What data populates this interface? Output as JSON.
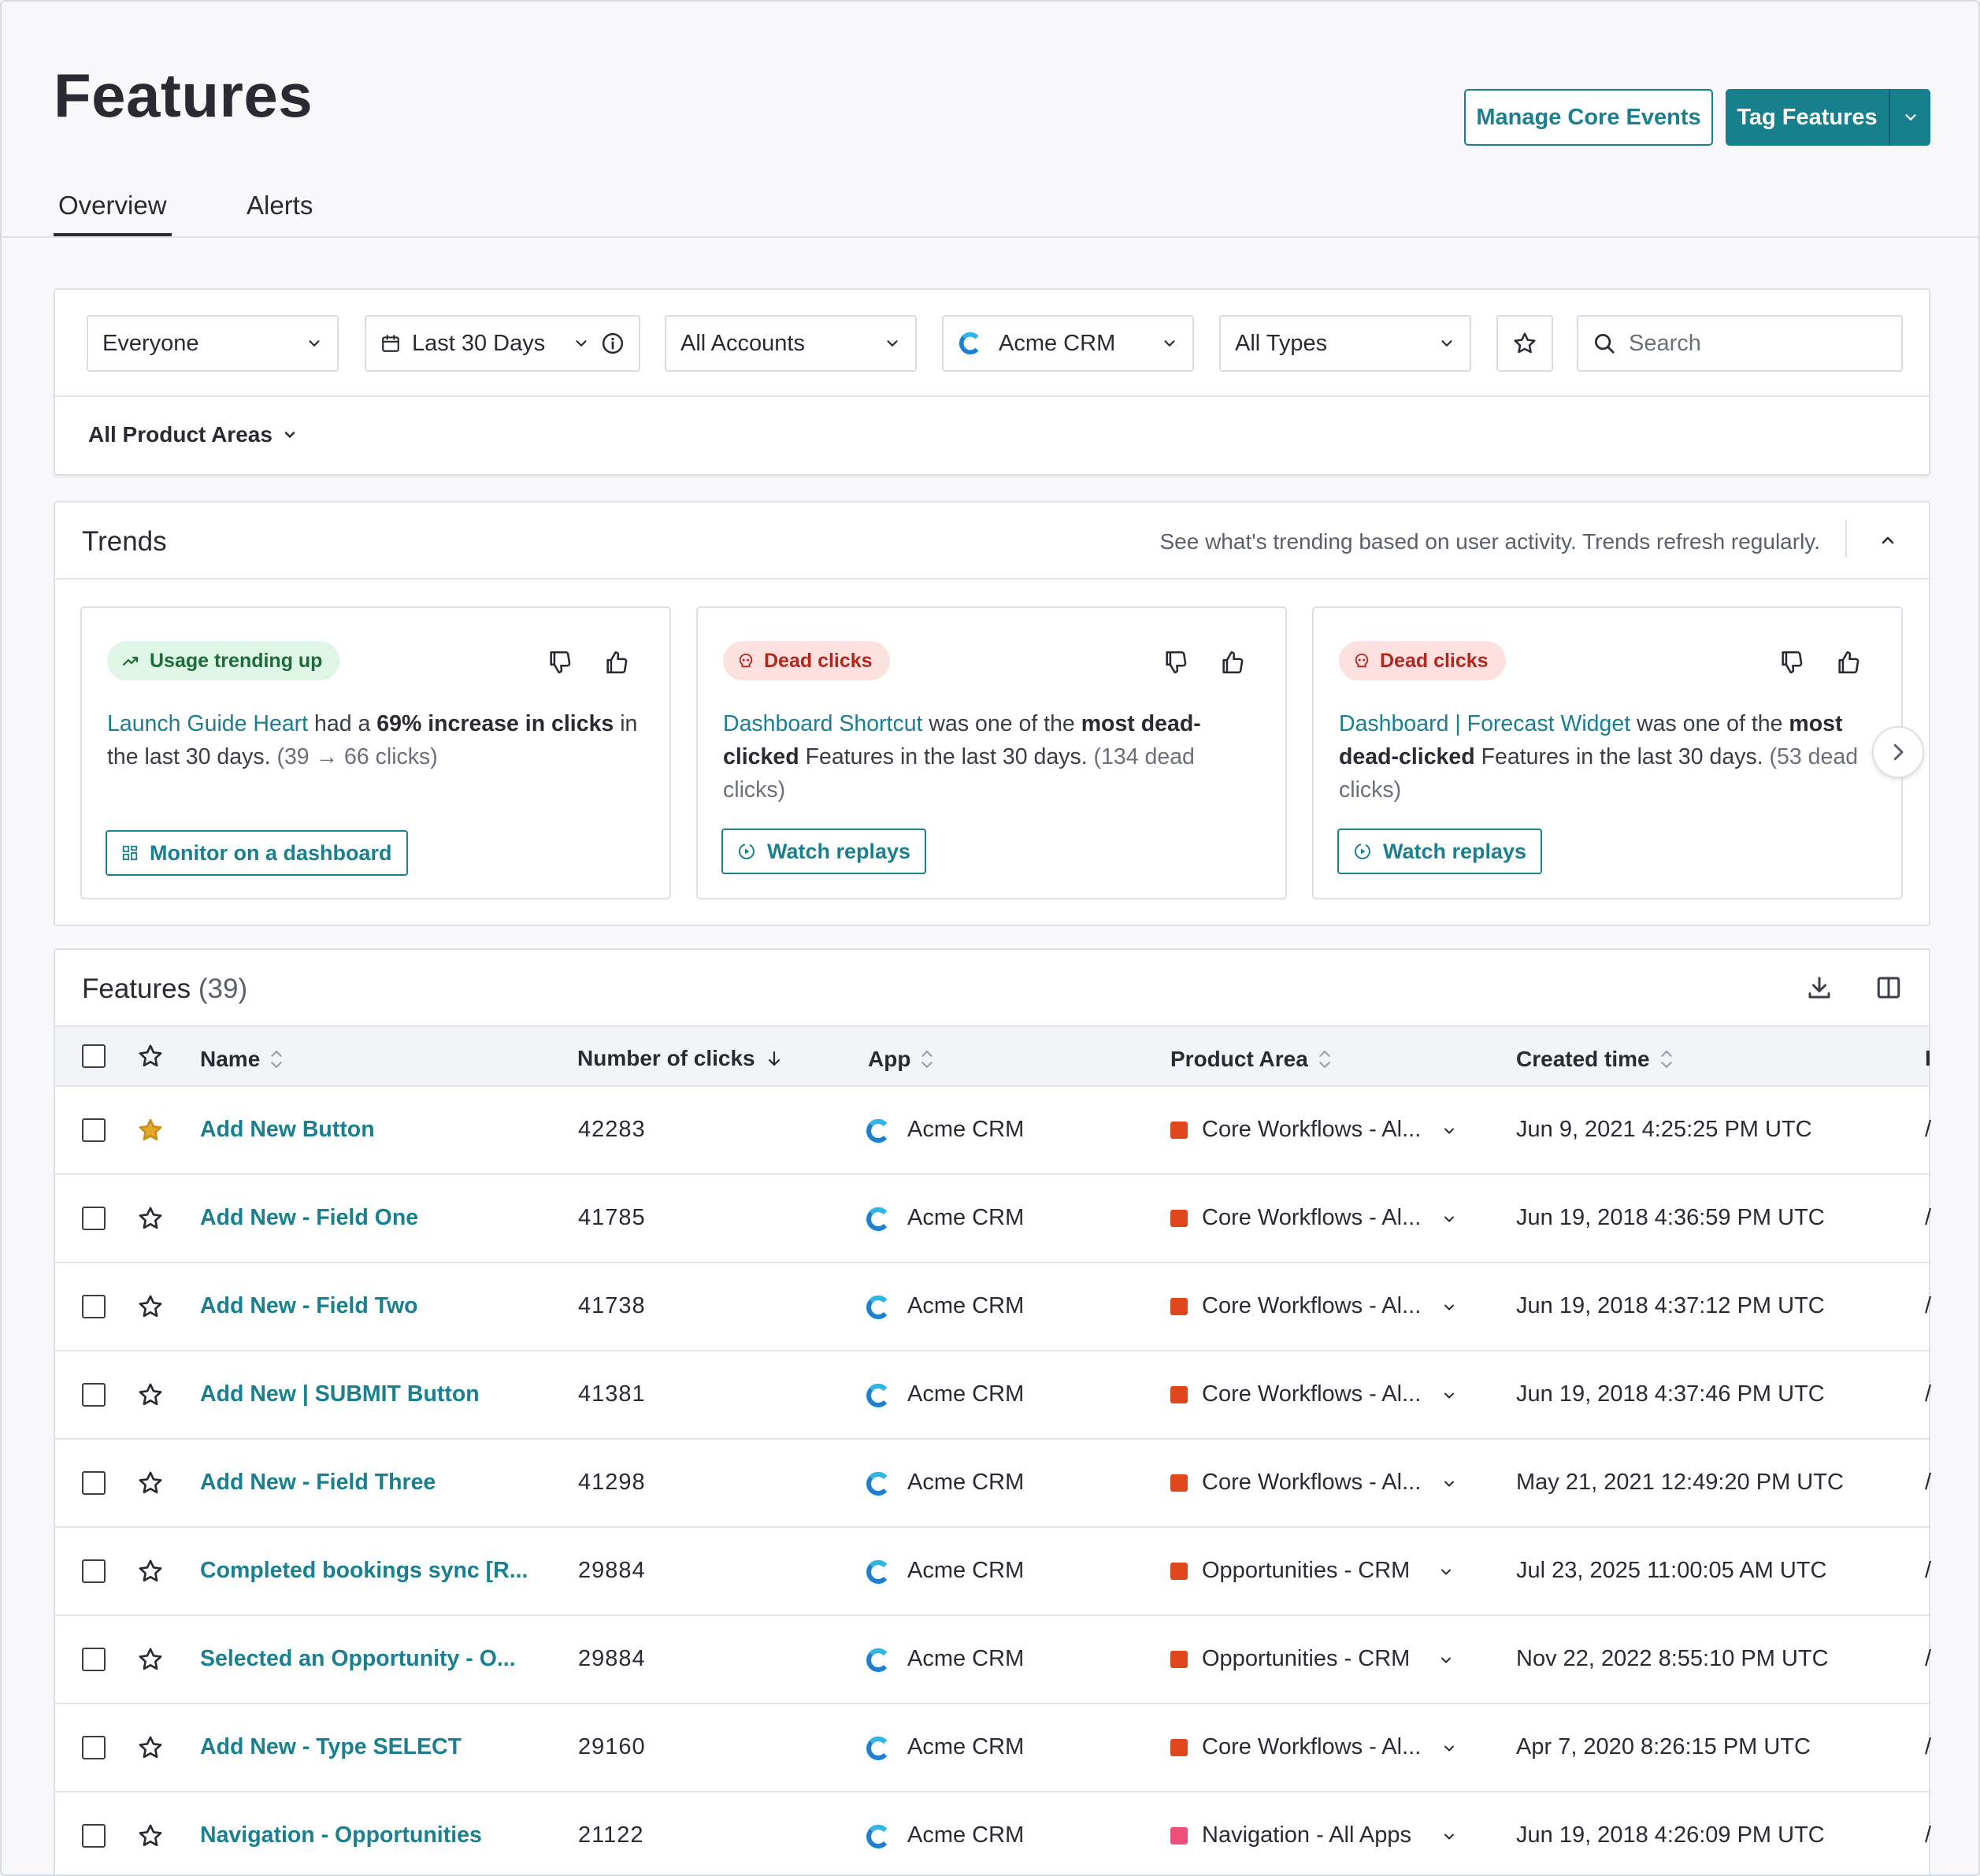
{
  "header": {
    "title": "Features",
    "manage_core_events": "Manage Core Events",
    "tag_features": "Tag Features"
  },
  "tabs": [
    {
      "label": "Overview",
      "active": true
    },
    {
      "label": "Alerts",
      "active": false
    }
  ],
  "filters": {
    "segment": "Everyone",
    "date_range": "Last 30 Days",
    "accounts": "All Accounts",
    "app": "Acme CRM",
    "types": "All Types",
    "search_placeholder": "Search",
    "product_areas": "All Product Areas"
  },
  "trends": {
    "title": "Trends",
    "hint": "See what's trending based on user activity. Trends refresh regularly.",
    "cards": [
      {
        "badge": "Usage trending up",
        "link": "Launch Guide Heart",
        "text_a": " had a ",
        "bold_a": "69% increase in clicks",
        "text_b": " in the last 30 days. ",
        "muted": "(39 → 66 clicks)",
        "button": "Monitor on a dashboard"
      },
      {
        "badge": "Dead clicks",
        "link": "Dashboard Shortcut",
        "text_a": " was one of the ",
        "bold_a": "most dead-clicked",
        "text_b": " Features in the last 30 days. ",
        "muted": "(134 dead clicks)",
        "button": "Watch replays"
      },
      {
        "badge": "Dead clicks",
        "link": "Dashboard | Forecast Widget",
        "text_a": " was one of the ",
        "bold_a": "most dead-clicked",
        "text_b": " Features in the last 30 days. ",
        "muted": "(53 dead clicks)",
        "button": "Watch replays"
      }
    ]
  },
  "features_table": {
    "title": "Features",
    "count": "(39)",
    "columns": {
      "name": "Name",
      "clicks": "Number of clicks",
      "app": "App",
      "product_area": "Product Area",
      "created": "Created time"
    },
    "rows": [
      {
        "name": "Add New Button",
        "clicks": "42283",
        "app": "Acme CRM",
        "area": "Core Workflows - Al...",
        "area_color": "#e0461b",
        "created": "Jun 9, 2021 4:25:25 PM UTC",
        "starred": true
      },
      {
        "name": "Add New - Field One",
        "clicks": "41785",
        "app": "Acme CRM",
        "area": "Core Workflows - Al...",
        "area_color": "#e0461b",
        "created": "Jun 19, 2018 4:36:59 PM UTC",
        "starred": false
      },
      {
        "name": "Add New - Field Two",
        "clicks": "41738",
        "app": "Acme CRM",
        "area": "Core Workflows - Al...",
        "area_color": "#e0461b",
        "created": "Jun 19, 2018 4:37:12 PM UTC",
        "starred": false
      },
      {
        "name": "Add New | SUBMIT Button",
        "clicks": "41381",
        "app": "Acme CRM",
        "area": "Core Workflows - Al...",
        "area_color": "#e0461b",
        "created": "Jun 19, 2018 4:37:46 PM UTC",
        "starred": false
      },
      {
        "name": "Add New - Field Three",
        "clicks": "41298",
        "app": "Acme CRM",
        "area": "Core Workflows - Al...",
        "area_color": "#e0461b",
        "created": "May 21, 2021 12:49:20 PM UTC",
        "starred": false
      },
      {
        "name": "Completed bookings sync [R...",
        "clicks": "29884",
        "app": "Acme CRM",
        "area": "Opportunities - CRM",
        "area_color": "#e0461b",
        "created": "Jul 23, 2025 11:00:05 AM UTC",
        "starred": false
      },
      {
        "name": "Selected an Opportunity - O...",
        "clicks": "29884",
        "app": "Acme CRM",
        "area": "Opportunities - CRM",
        "area_color": "#e0461b",
        "created": "Nov 22, 2022 8:55:10 PM UTC",
        "starred": false
      },
      {
        "name": "Add New - Type SELECT",
        "clicks": "29160",
        "app": "Acme CRM",
        "area": "Core Workflows - Al...",
        "area_color": "#e0461b",
        "created": "Apr 7, 2020 8:26:15 PM UTC",
        "starred": false
      },
      {
        "name": "Navigation - Opportunities",
        "clicks": "21122",
        "app": "Acme CRM",
        "area": "Navigation - All Apps",
        "area_color": "#f04e7a",
        "created": "Jun 19, 2018 4:26:09 PM UTC",
        "starred": false
      }
    ]
  },
  "colors": {
    "accent": "#1a7f8e",
    "star_active": "#e2a82b"
  }
}
